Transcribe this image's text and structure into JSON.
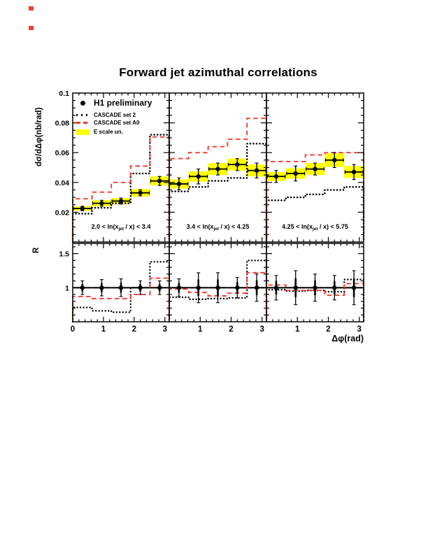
{
  "title": "Forward jet azimuthal correlations",
  "colors": {
    "red": "#f63c30",
    "yellow": "#ffff00",
    "black": "#000000"
  },
  "legend": {
    "items": [
      {
        "marker": "dot-marker",
        "label": "H1 preliminary"
      },
      {
        "marker": "dotted-line",
        "label": "CASCADE set 2"
      },
      {
        "marker": "dashed-line",
        "label": "CASCADE set A0"
      },
      {
        "marker": "band-swatch",
        "label": "E scale un."
      }
    ]
  },
  "axes": {
    "y_label": "dσ/dΔφ(nb/rad)",
    "y_ticks": [
      {
        "v": 0.02,
        "label": "0.02"
      },
      {
        "v": 0.04,
        "label": "0.04"
      },
      {
        "v": 0.06,
        "label": "0.06"
      },
      {
        "v": 0.08,
        "label": "0.08"
      },
      {
        "v": 0.1,
        "label": "0.1"
      }
    ],
    "r_label": "R",
    "r_ticks": [
      {
        "v": 1.0,
        "label": "1"
      },
      {
        "v": 1.5,
        "label": "1.5"
      }
    ],
    "x_label": "Δφ(rad)",
    "x_tick_labels": [
      "0",
      "1",
      "2",
      "3"
    ],
    "x_tick_values": [
      0,
      1,
      2,
      3
    ]
  },
  "chart_data": {
    "type": "errorbar-points with step-histogram overlays, 3x2 panel grid",
    "x_range": [
      0,
      3.1416
    ],
    "x_bin_centers": [
      0.314,
      0.942,
      1.571,
      2.199,
      2.827
    ],
    "x_bin_width": 0.628,
    "top_row": {
      "ylabel": "dσ/dΔφ(nb/rad)",
      "ylim": [
        0,
        0.1
      ],
      "panels": [
        {
          "label": "2.0 < ln(x_jet / x) < 3.4",
          "label_parts": [
            "2.0 < ln(x",
            "jet",
            " / x) < 3.4"
          ],
          "h1": [
            0.0225,
            0.026,
            0.0275,
            0.033,
            0.041
          ],
          "h1_err": [
            0.0015,
            0.002,
            0.002,
            0.002,
            0.003
          ],
          "escale_band": [
            0.0015,
            0.002,
            0.002,
            0.0025,
            0.003
          ],
          "cascade_set2": [
            0.019,
            0.023,
            0.026,
            0.046,
            0.072
          ],
          "cascade_setA0": [
            0.029,
            0.0335,
            0.04,
            0.051,
            0.0705
          ]
        },
        {
          "label": "3.4 < ln(x_jet / x) < 4.25",
          "label_parts": [
            "3.4 < ln(x",
            "jet",
            " / x) < 4.25"
          ],
          "h1": [
            0.039,
            0.044,
            0.049,
            0.052,
            0.048
          ],
          "h1_err": [
            0.004,
            0.005,
            0.004,
            0.004,
            0.005
          ],
          "escale_band": [
            0.003,
            0.0035,
            0.004,
            0.004,
            0.004
          ],
          "cascade_set2": [
            0.034,
            0.037,
            0.041,
            0.043,
            0.066
          ],
          "cascade_setA0": [
            0.056,
            0.06,
            0.064,
            0.069,
            0.083
          ]
        },
        {
          "label": "4.25 <  ln(x_jet / x) < 5.75",
          "label_parts": [
            "4.25 <  ln(x",
            "jet",
            " / x) < 5.75"
          ],
          "h1": [
            0.044,
            0.046,
            0.049,
            0.055,
            0.047
          ],
          "h1_err": [
            0.004,
            0.005,
            0.004,
            0.005,
            0.005
          ],
          "escale_band": [
            0.003,
            0.0035,
            0.004,
            0.0045,
            0.004
          ],
          "cascade_set2": [
            0.028,
            0.03,
            0.032,
            0.035,
            0.037
          ],
          "cascade_setA0": [
            0.054,
            0.054,
            0.0585,
            0.06,
            0.06
          ]
        }
      ]
    },
    "ratio_row": {
      "ylabel": "R",
      "ylim": [
        0.5,
        1.65
      ],
      "reference_line": 1.0,
      "panels": [
        {
          "h1": [
            1.0,
            1.0,
            1.0,
            1.0,
            1.0
          ],
          "h1_err": [
            0.1,
            0.12,
            0.13,
            0.1,
            0.1
          ],
          "cascade_set2": [
            0.71,
            0.66,
            0.64,
            1.0,
            1.38
          ],
          "cascade_setA0": [
            0.87,
            0.84,
            0.84,
            0.9,
            1.14
          ]
        },
        {
          "h1": [
            1.0,
            1.0,
            1.0,
            1.0,
            1.0
          ],
          "h1_err": [
            0.13,
            0.22,
            0.22,
            0.15,
            0.2
          ],
          "cascade_set2": [
            0.86,
            0.83,
            0.84,
            0.85,
            1.4
          ],
          "cascade_setA0": [
            0.98,
            0.93,
            0.88,
            0.92,
            1.22
          ]
        },
        {
          "h1": [
            1.0,
            1.0,
            1.0,
            1.0,
            1.0
          ],
          "h1_err": [
            0.18,
            0.25,
            0.2,
            0.18,
            0.25
          ],
          "cascade_set2": [
            0.97,
            0.95,
            0.96,
            0.94,
            1.12
          ],
          "cascade_setA0": [
            1.04,
            0.96,
            0.96,
            0.89,
            1.06
          ]
        }
      ]
    },
    "xlabel": "Δφ(rad)"
  }
}
